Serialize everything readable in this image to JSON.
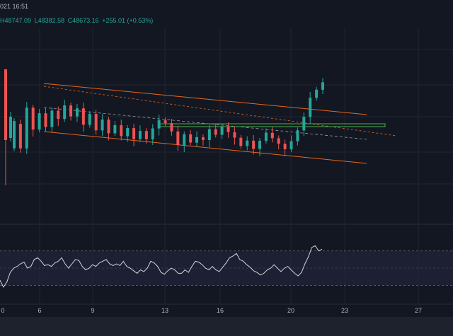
{
  "header": {
    "datetime": "021 16:51",
    "ohlc": {
      "high": "H48747.09",
      "low": "L48382.58",
      "close": "C48673.16",
      "change": "+255.01 (+0.53%)"
    }
  },
  "colors": {
    "background": "#131722",
    "up": "#26a69a",
    "down": "#ef5350",
    "channel": "#e8661b",
    "support": "#4caf50",
    "rsi_line": "#d1d4dc",
    "rsi_band": "#2a2a4a"
  },
  "time_axis": {
    "ticks": [
      "0",
      "6",
      "9",
      "13",
      "16",
      "20",
      "23",
      "27"
    ]
  },
  "rsi": {
    "upper": 70,
    "lower": 30
  },
  "chart_data": {
    "type": "candlestick",
    "xlabel": "",
    "ylabel": "",
    "x_ticks": [
      "0",
      "6",
      "9",
      "13",
      "16",
      "20",
      "23",
      "27"
    ],
    "last_bar": {
      "high": 48747.09,
      "low": 48382.58,
      "close": 48673.16,
      "change": 255.01,
      "change_pct": 0.53
    },
    "candles_seed": [
      [
        46100,
        47100
      ],
      [
        47000,
        46100
      ],
      [
        46100,
        47600
      ],
      [
        47600,
        46800
      ],
      [
        46800,
        47400
      ],
      [
        47400,
        46900
      ],
      [
        46900,
        47500
      ],
      [
        47500,
        47200
      ],
      [
        47200,
        47700
      ],
      [
        47700,
        47300
      ],
      [
        47300,
        47600
      ],
      [
        47600,
        47000
      ],
      [
        47000,
        47400
      ],
      [
        47400,
        46800
      ],
      [
        46800,
        47200
      ],
      [
        47200,
        46700
      ],
      [
        46700,
        47000
      ],
      [
        47000,
        46600
      ],
      [
        46600,
        46900
      ],
      [
        46900,
        46500
      ],
      [
        46500,
        46800
      ],
      [
        46800,
        46500
      ],
      [
        46500,
        46900
      ],
      [
        46900,
        47200
      ],
      [
        47200,
        47100
      ],
      [
        47100,
        46800
      ],
      [
        46800,
        46300
      ],
      [
        46300,
        46700
      ],
      [
        46700,
        46400
      ],
      [
        46400,
        46600
      ],
      [
        46600,
        46500
      ],
      [
        46500,
        46900
      ],
      [
        46900,
        46700
      ],
      [
        46700,
        47000
      ],
      [
        47000,
        46800
      ],
      [
        46800,
        46600
      ],
      [
        46600,
        46300
      ],
      [
        46300,
        46500
      ],
      [
        46500,
        46200
      ],
      [
        46200,
        46500
      ],
      [
        46500,
        46800
      ],
      [
        46800,
        46600
      ],
      [
        46600,
        46400
      ],
      [
        46400,
        46200
      ],
      [
        46200,
        46500
      ],
      [
        46500,
        46900
      ],
      [
        46900,
        47400
      ],
      [
        47400,
        48100
      ],
      [
        48100,
        48400
      ],
      [
        48400,
        48673
      ]
    ],
    "rsi_values": [
      36,
      28,
      34,
      45,
      50,
      52,
      55,
      57,
      50,
      52,
      60,
      62,
      58,
      53,
      54,
      52,
      56,
      58,
      62,
      55,
      50,
      55,
      60,
      59,
      52,
      48,
      50,
      54,
      52,
      56,
      58,
      60,
      55,
      53,
      55,
      53,
      58,
      52,
      50,
      47,
      44,
      48,
      46,
      50,
      58,
      56,
      52,
      45,
      43,
      47,
      50,
      48,
      44,
      44,
      48,
      45,
      52,
      58,
      57,
      54,
      50,
      48,
      52,
      48,
      46,
      51,
      56,
      62,
      64,
      67,
      60,
      58,
      54,
      51,
      47,
      45,
      42,
      44,
      48,
      50,
      54,
      50,
      46,
      50,
      52,
      48,
      44,
      41,
      45,
      55,
      63,
      74,
      76,
      70,
      72
    ]
  }
}
